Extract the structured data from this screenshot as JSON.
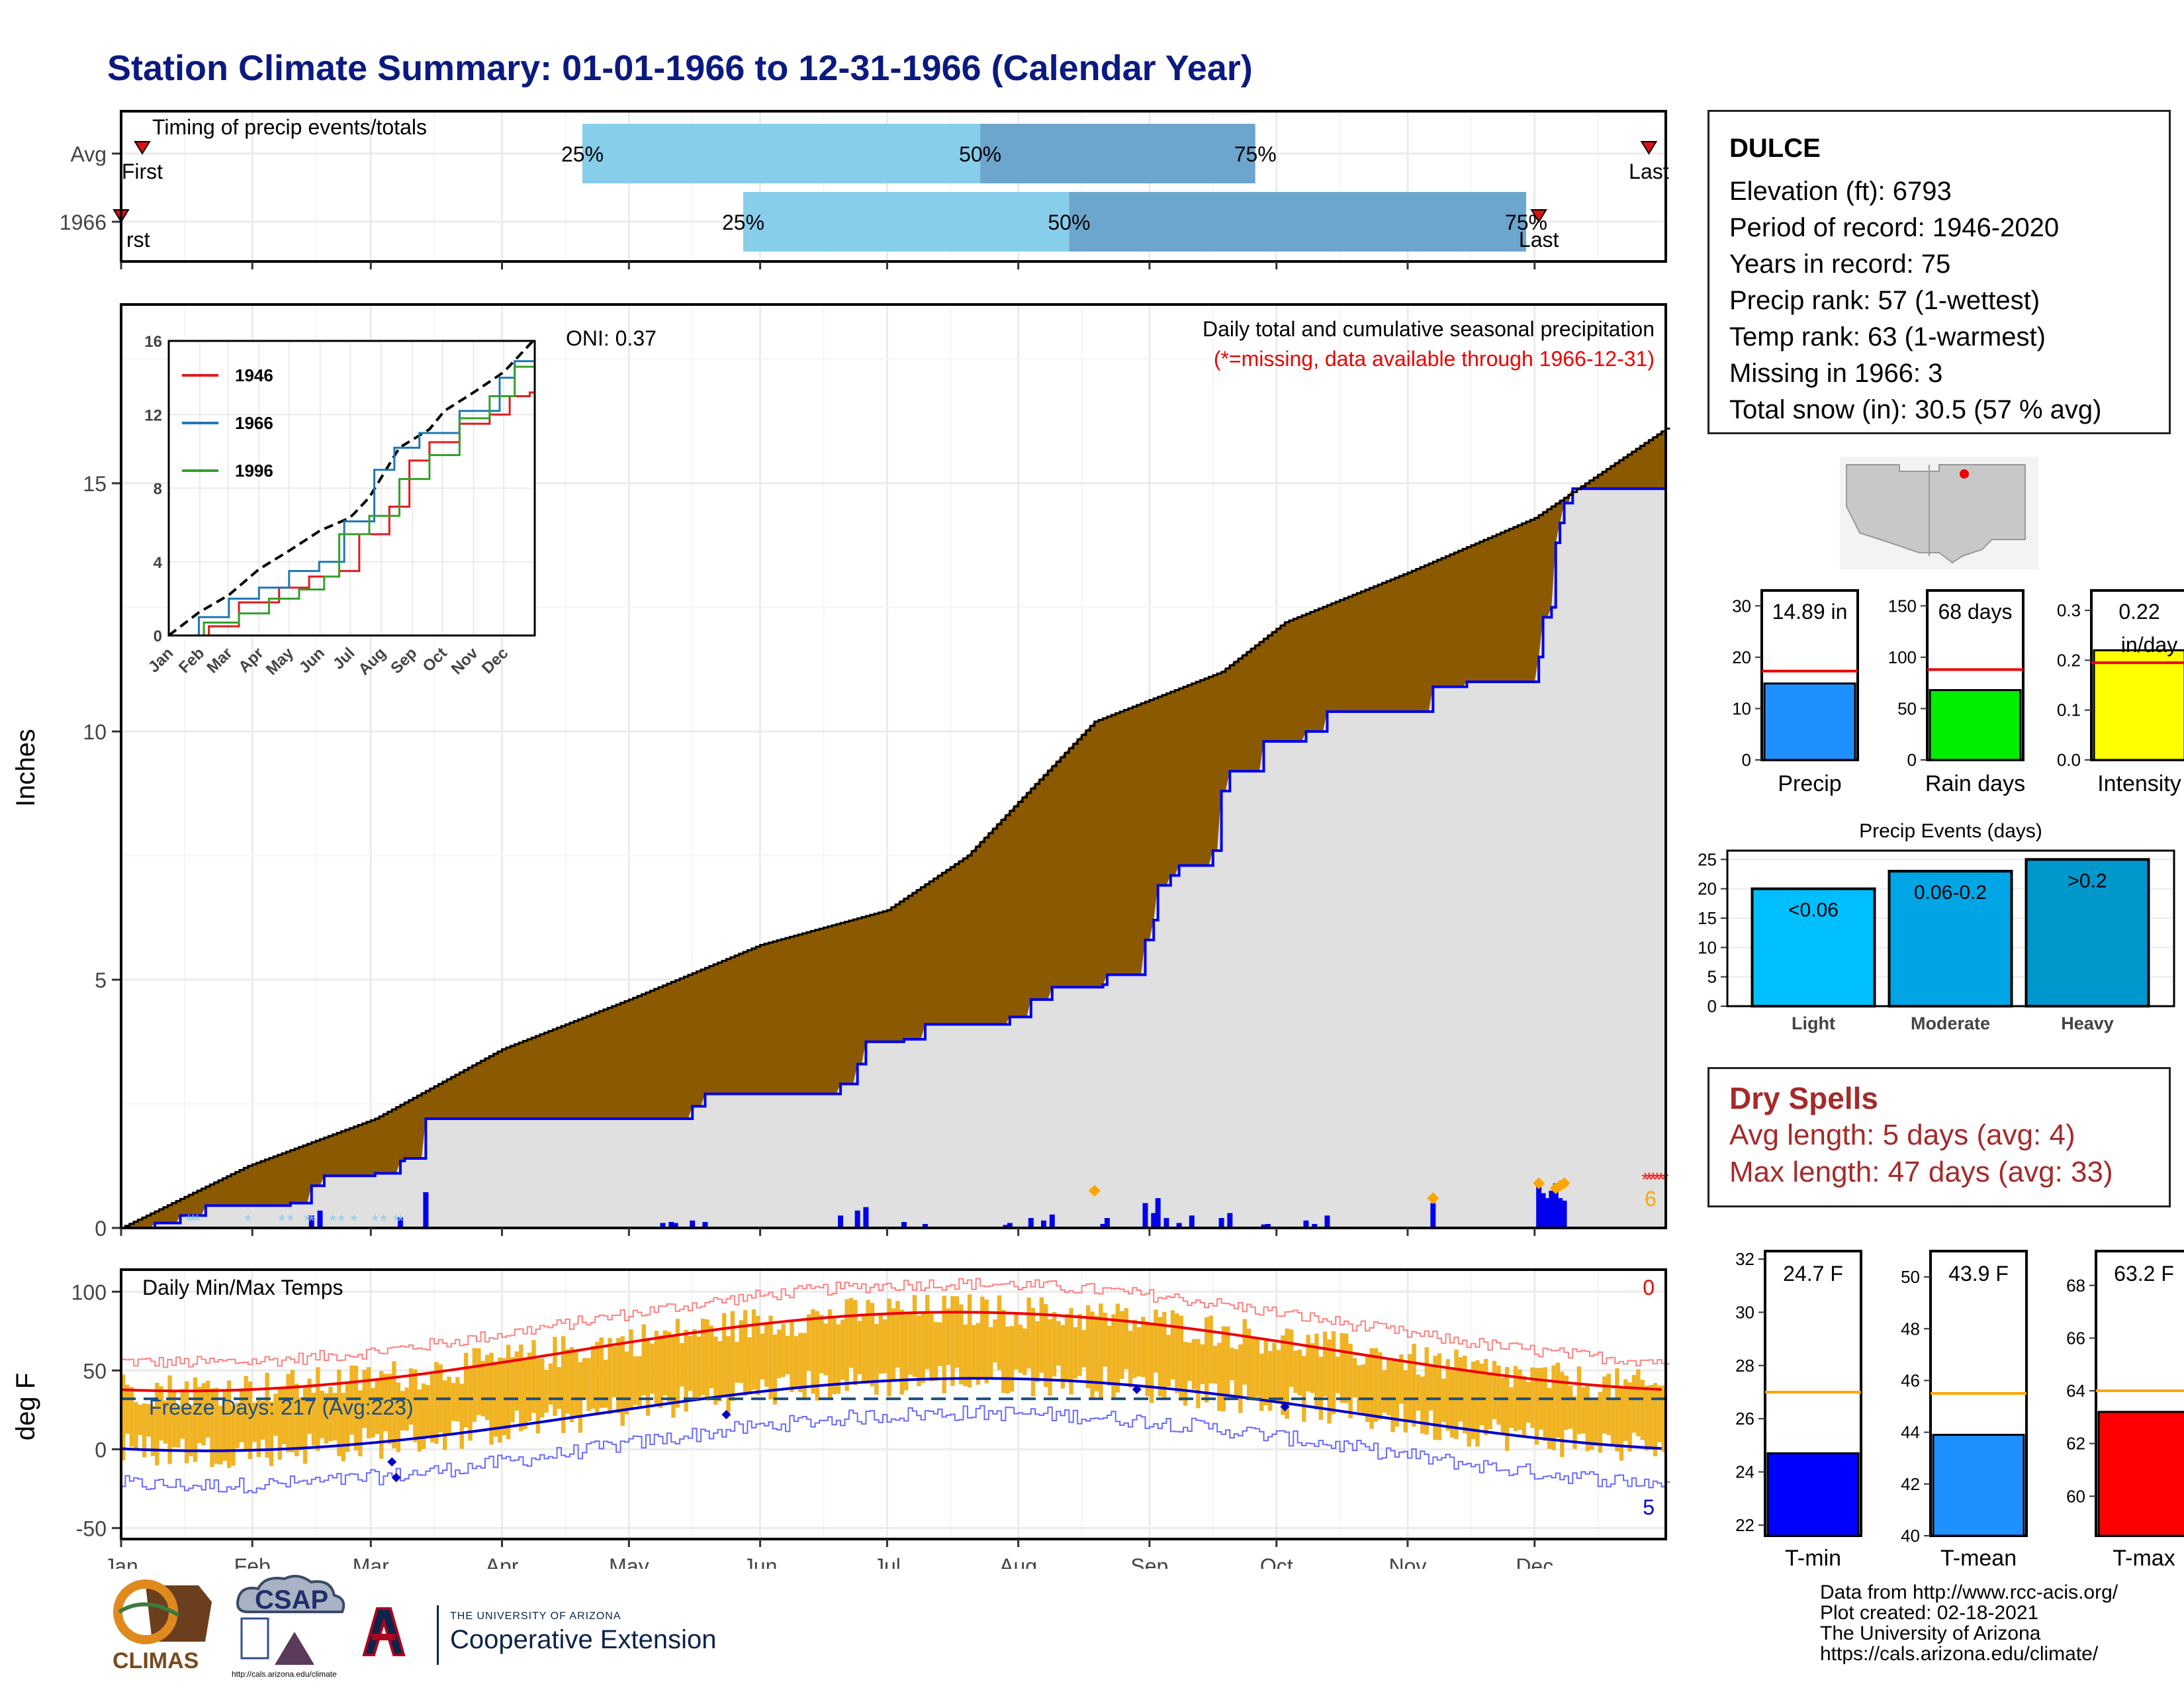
{
  "title": "Station Climate Summary: 01-01-1966 to 12-31-1966 (Calendar Year)",
  "months": [
    "Jan",
    "Feb",
    "Mar",
    "Apr",
    "May",
    "Jun",
    "Jul",
    "Aug",
    "Sep",
    "Oct",
    "Nov",
    "Dec"
  ],
  "timing": {
    "label": "Timing of precip events/totals",
    "rows": [
      "Avg",
      "1966"
    ],
    "first_label": "First",
    "first_label_cut": "rst",
    "last_label": "Last",
    "pct_labels": [
      "25%",
      "50%",
      "75%"
    ],
    "avg_day": {
      "first": 5,
      "p25": 109,
      "p50": 203,
      "p75": 268,
      "last": 361
    },
    "year_day": {
      "first": 0,
      "p25": 147,
      "p50": 224,
      "p75": 332,
      "last": 335
    },
    "colors": {
      "light": "#87ceeb",
      "dark": "#6ca6cd",
      "marker": "#dd1111"
    }
  },
  "station": {
    "name": "DULCE",
    "elevation": "Elevation (ft): 6793",
    "period": "Period of record: 1946-2020",
    "years": "Years in record: 75",
    "precip_rank": "Precip rank: 57 (1-wettest)",
    "temp_rank": "Temp rank: 63 (1-warmest)",
    "missing": "Missing in 1966: 3",
    "snow": "Total snow (in): 30.5 (57 % avg)"
  },
  "precip_panel": {
    "title": "Daily total and cumulative seasonal precipitation",
    "missing_note": "(*=missing, data available through 1966-12-31)",
    "ylabel": "Inches",
    "oni": "ONI: 0.37",
    "yticks": [
      "0",
      "5",
      "10",
      "15"
    ],
    "missing_count": "6",
    "colors": {
      "cumulative_fill": "#8b5a00",
      "year_line": "#0000ee",
      "year_fill": "#e0e0e0",
      "daily_bars": "#0000ee",
      "snow": "#87ceeb",
      "missing": "#ff2020"
    }
  },
  "inset": {
    "legend": [
      "1946",
      "1966",
      "1996"
    ],
    "colors": [
      "#e31a1c",
      "#1f78b4",
      "#33a02c"
    ],
    "yticks": [
      "0",
      "4",
      "8",
      "12",
      "16"
    ],
    "xticks": [
      "Jan",
      "Feb",
      "Mar",
      "Apr",
      "May",
      "Jun",
      "Jul",
      "Aug",
      "Sep",
      "Oct",
      "Nov",
      "Dec"
    ]
  },
  "temp_panel": {
    "label": "Daily Min/Max Temps",
    "ylabel": "deg F",
    "yticks": [
      "-50",
      "0",
      "50",
      "100"
    ],
    "freeze": "Freeze Days: 217 (Avg:223)",
    "hot_count": "0",
    "cold_count": "5",
    "colors": {
      "bars": "#f0b323",
      "max_line": "#ee0000",
      "min_line": "#0000cc",
      "freeze_line": "#1f4f7f"
    }
  },
  "summary_bars": [
    {
      "name": "Precip",
      "label": "14.89 in",
      "value": 14.89,
      "avg": 17.3,
      "ymax": 33,
      "yticks": [
        "0",
        "10",
        "20",
        "30"
      ],
      "color": "#1e90ff"
    },
    {
      "name": "Rain days",
      "label": "68 days",
      "value": 68,
      "avg": 88,
      "ymax": 165,
      "yticks": [
        "0",
        "50",
        "100",
        "150"
      ],
      "color": "#00ee00"
    },
    {
      "name": "Intensity",
      "label": "0.22",
      "label2": "in/day",
      "value": 0.22,
      "avg": 0.195,
      "ymax": 0.34,
      "yticks": [
        "0.0",
        "0.1",
        "0.2",
        "0.3"
      ],
      "color": "#ffff00"
    }
  ],
  "events": {
    "title": "Precip Events (days)",
    "categories": [
      "Light",
      "Moderate",
      "Heavy"
    ],
    "bar_labels": [
      "<0.06",
      "0.06-0.2",
      ">0.2"
    ],
    "values": [
      20,
      23,
      25
    ],
    "yticks": [
      "0",
      "5",
      "10",
      "15",
      "20",
      "25"
    ],
    "colors": [
      "#00bfff",
      "#00a5e5",
      "#0097cc"
    ]
  },
  "dry_spells": {
    "title": "Dry Spells",
    "avg": "Avg length: 5 days (avg: 4)",
    "max": "Max length: 47 days (avg: 33)"
  },
  "temp_bars": [
    {
      "name": "T-min",
      "label": "24.7 F",
      "value": 24.7,
      "avg": 27.0,
      "ymin": 21.6,
      "ymax": 32.3,
      "yticks": [
        "22",
        "24",
        "26",
        "28",
        "30",
        "32"
      ],
      "color": "#0000ff"
    },
    {
      "name": "T-mean",
      "label": "43.9 F",
      "value": 43.9,
      "avg": 45.5,
      "ymin": 40,
      "ymax": 51,
      "yticks": [
        "40",
        "42",
        "44",
        "46",
        "48",
        "50"
      ],
      "color": "#1e90ff"
    },
    {
      "name": "T-max",
      "label": "63.2 F",
      "value": 63.2,
      "avg": 64.0,
      "ymin": 58.5,
      "ymax": 69.3,
      "yticks": [
        "60",
        "62",
        "64",
        "66",
        "68"
      ],
      "color": "#ff0000"
    }
  ],
  "footer": {
    "line1": "Data from http://www.rcc-acis.org/",
    "line2": "Plot created: 02-18-2021",
    "line3": "The University of Arizona",
    "line4": "https://cals.arizona.edu/climate/",
    "climas": "CLIMAS",
    "csap": "CSAP",
    "csap_url": "http://cals.arizona.edu/climate",
    "ua_small": "THE UNIVERSITY OF ARIZONA",
    "ua_big": "Cooperative Extension"
  }
}
